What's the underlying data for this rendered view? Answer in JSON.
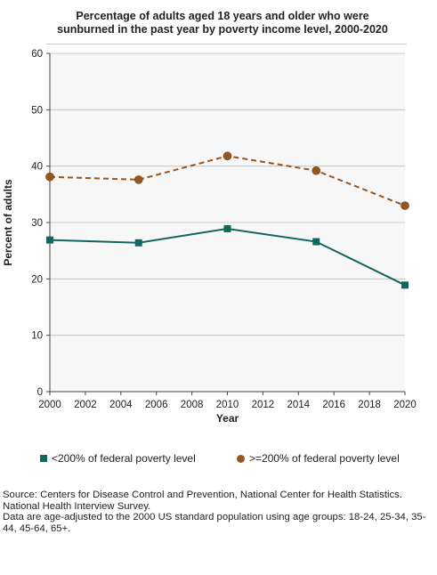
{
  "chart_data": {
    "type": "line",
    "title": "Percentage of adults aged 18 years and older who were sunburned in the past year by poverty income level, 2000-2020",
    "title_lines": [
      "Percentage of adults aged 18 years and older who were",
      "sunburned in the past year by poverty income level, 2000-2020"
    ],
    "xlabel": "Year",
    "ylabel": "Percent of adults",
    "xlim": [
      2000,
      2020
    ],
    "ylim": [
      0,
      60
    ],
    "x_ticks": [
      "2000",
      "2002",
      "2004",
      "2006",
      "2008",
      "2010",
      "2012",
      "2014",
      "2016",
      "2018",
      "2020"
    ],
    "y_ticks": [
      "0",
      "10",
      "20",
      "30",
      "40",
      "50",
      "60"
    ],
    "grid": "horizontal",
    "legend_position": "bottom",
    "x": [
      2000,
      2005,
      2010,
      2015,
      2020
    ],
    "series": [
      {
        "name": "<200% of federal poverty level",
        "values": [
          26.9,
          26.4,
          28.9,
          26.6,
          18.9
        ],
        "color": "#12665f",
        "style": "solid",
        "marker": "square"
      },
      {
        "name": ">=200% of federal poverty level",
        "values": [
          38.1,
          37.6,
          41.8,
          39.2,
          33.0
        ],
        "color": "#98561f",
        "style": "dashed",
        "marker": "circle"
      }
    ]
  },
  "source": {
    "lines": [
      "Source: Centers for Disease Control and Prevention, National Center for Health Statistics. National Health Interview Survey.",
      "Data are age-adjusted to the 2000 US standard population using age groups: 18-24, 25-34, 35-44, 45-64, 65+."
    ]
  },
  "colors": {
    "plot_background": "#f7f7f7",
    "gridline": "#bbbbbb",
    "axis": "#444444"
  }
}
